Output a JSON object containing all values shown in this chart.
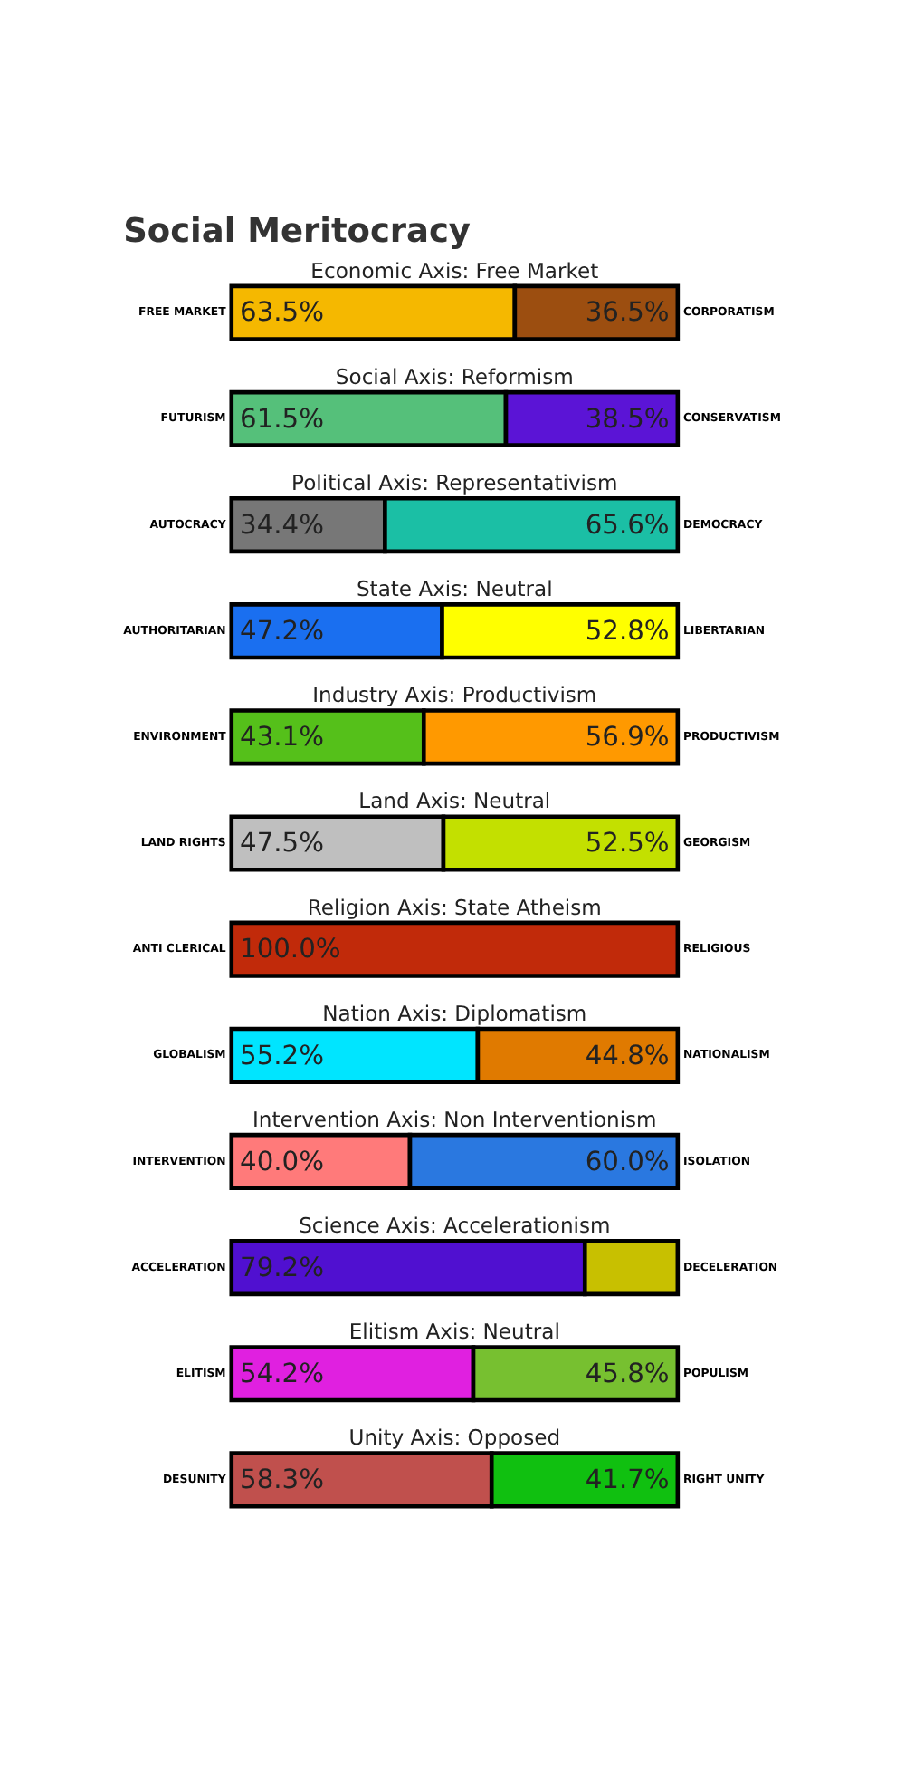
{
  "chart_data": {
    "type": "bar",
    "orientation": "horizontal",
    "stacked": true,
    "title": "Social Meritocracy",
    "categories": [
      "Economic Axis: Free Market",
      "Social Axis: Reformism",
      "Political Axis: Representativism",
      "State Axis: Neutral",
      "Industry Axis: Productivism",
      "Land Axis: Neutral",
      "Religion Axis: State Atheism",
      "Nation Axis: Diplomatism",
      "Intervention Axis: Non Interventionism",
      "Science Axis: Accelerationism",
      "Elitism Axis: Neutral",
      "Unity Axis: Opposed"
    ],
    "xlim": [
      0,
      100
    ],
    "tick_labels": false,
    "series": [
      {
        "values": [
          63.5,
          61.5,
          34.4,
          47.2,
          43.1,
          47.5,
          100.0,
          55.2,
          40.0,
          79.2,
          54.2,
          58.3
        ],
        "colors": [
          "#f5b800",
          "#55c07a",
          "#777777",
          "#1a6ff0",
          "#55c01a",
          "#bfbfbf",
          "#c12a0a",
          "#00e5ff",
          "#ff7a7a",
          "#5010d0",
          "#e020e0",
          "#c0504d"
        ],
        "value_labels": [
          "63.5%",
          "61.5%",
          "34.4%",
          "47.2%",
          "43.1%",
          "47.5%",
          "100.0%",
          "55.2%",
          "40.0%",
          "79.2%",
          "54.2%",
          "58.3%"
        ]
      },
      {
        "values": [
          36.5,
          38.5,
          65.6,
          52.8,
          56.9,
          52.5,
          null,
          44.8,
          60.0,
          20.8,
          45.8,
          41.7
        ],
        "colors": [
          "#9c4e10",
          "#5b14d6",
          "#1bbfa5",
          "#ffff00",
          "#ff9900",
          "#c3e000",
          null,
          "#e07a00",
          "#2a78e0",
          "#c8c000",
          "#77c030",
          "#10c010"
        ],
        "value_labels": [
          "36.5%",
          "38.5%",
          "65.6%",
          "52.8%",
          "56.9%",
          "52.5%",
          null,
          "44.8%",
          "60.0%",
          null,
          "45.8%",
          "41.7%"
        ]
      }
    ],
    "annotations": [
      "FREE MARKET",
      "CORPORATISM",
      "FUTURISM",
      "CONSERVATISM",
      "AUTOCRACY",
      "DEMOCRACY",
      "AUTHORITARIAN",
      "LIBERTARIAN",
      "ENVIRONMENT",
      "PRODUCTIVISM",
      "LAND RIGHTS",
      "GEORGISM",
      "ANTI CLERICAL",
      "RELIGIOUS",
      "GLOBALISM",
      "NATIONALISM",
      "INTERVENTION",
      "ISOLATION",
      "ACCELERATION",
      "DECELERATION",
      "ELITISM",
      "POPULISM",
      "DESUNITY",
      "RIGHT UNITY"
    ]
  }
}
